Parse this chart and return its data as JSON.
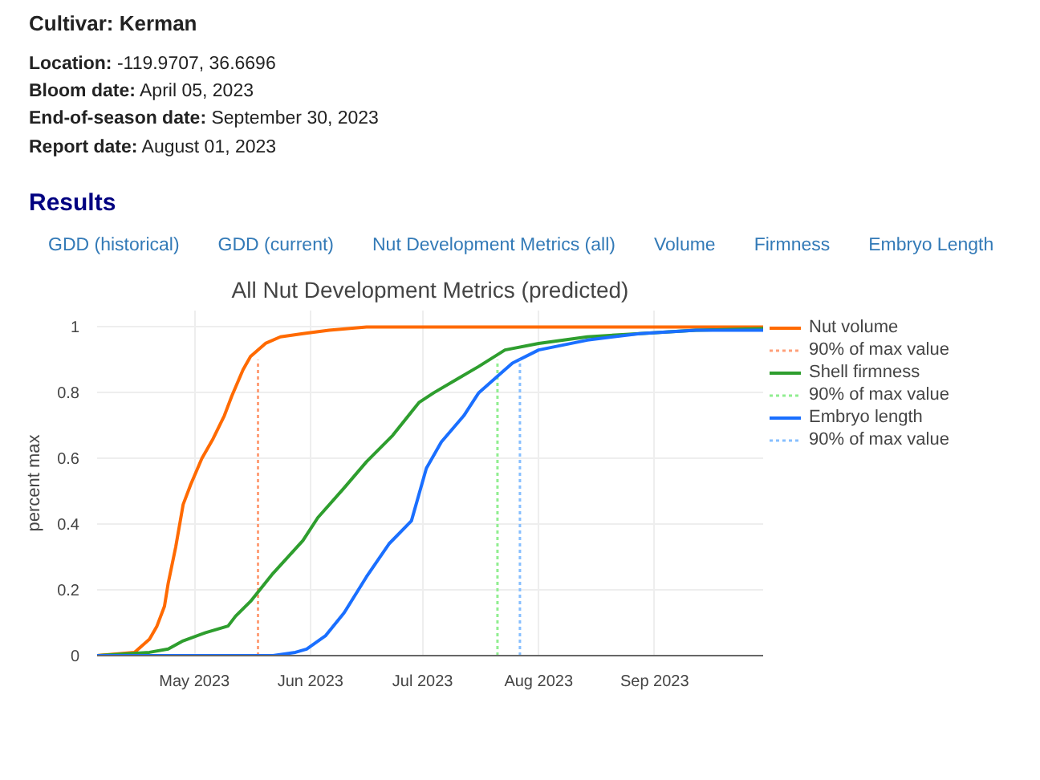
{
  "chart_data": {
    "type": "line",
    "title": "All Nut Development Metrics (predicted)",
    "ylabel": "percent max",
    "annotations": [
      "Cultivar: Kerman",
      "Location: -119.9707, 36.6696",
      "Bloom date: April 05, 2023",
      "End-of-season date: September 30, 2023",
      "Report date: August 01, 2023",
      "Results",
      "GDD (historical)",
      "GDD (current)",
      "Nut Development Metrics (all)",
      "Volume",
      "Firmness",
      "Embryo Length"
    ],
    "xlim": [
      "2023-04-05",
      "2023-09-30"
    ],
    "xticks": [
      {
        "value": "2023-05-01",
        "label": "May 2023"
      },
      {
        "value": "2023-06-01",
        "label": "Jun 2023"
      },
      {
        "value": "2023-07-01",
        "label": "Jul 2023"
      },
      {
        "value": "2023-08-01",
        "label": "Aug 2023"
      },
      {
        "value": "2023-09-01",
        "label": "Sep 2023"
      }
    ],
    "ylim": [
      0,
      1.05
    ],
    "yticks": [
      0,
      0.2,
      0.4,
      0.6,
      0.8,
      1
    ],
    "grid": true,
    "legend": "top right",
    "line_style": "solid",
    "series": [
      {
        "name": "Nut volume",
        "color": "#ff6a00",
        "x": [
          "2023-04-05",
          "2023-04-15",
          "2023-04-19",
          "2023-04-21",
          "2023-04-23",
          "2023-04-24",
          "2023-04-26",
          "2023-04-28",
          "2023-04-30",
          "2023-05-03",
          "2023-05-06",
          "2023-05-09",
          "2023-05-11",
          "2023-05-14",
          "2023-05-16",
          "2023-05-20",
          "2023-05-24",
          "2023-05-30",
          "2023-06-06",
          "2023-06-16",
          "2023-07-15",
          "2023-09-30"
        ],
        "values": [
          0,
          0.01,
          0.05,
          0.09,
          0.15,
          0.22,
          0.33,
          0.46,
          0.52,
          0.6,
          0.66,
          0.73,
          0.79,
          0.87,
          0.91,
          0.95,
          0.97,
          0.98,
          0.99,
          1,
          1,
          1
        ]
      },
      {
        "name": "90% of max value",
        "color": "#ffa07a",
        "line_style": "dotted",
        "x": [
          "2023-05-18",
          "2023-05-18"
        ],
        "values": [
          0,
          0.9
        ]
      },
      {
        "name": "Shell firmness",
        "color": "#2e9e2e",
        "x": [
          "2023-04-05",
          "2023-04-19",
          "2023-04-24",
          "2023-04-28",
          "2023-05-04",
          "2023-05-10",
          "2023-05-12",
          "2023-05-16",
          "2023-05-22",
          "2023-05-30",
          "2023-06-03",
          "2023-06-10",
          "2023-06-16",
          "2023-06-23",
          "2023-06-30",
          "2023-07-04",
          "2023-07-10",
          "2023-07-16",
          "2023-07-23",
          "2023-08-01",
          "2023-08-14",
          "2023-08-28",
          "2023-09-12",
          "2023-09-30"
        ],
        "values": [
          0,
          0.01,
          0.02,
          0.045,
          0.07,
          0.09,
          0.12,
          0.165,
          0.25,
          0.35,
          0.42,
          0.51,
          0.59,
          0.67,
          0.77,
          0.8,
          0.84,
          0.88,
          0.93,
          0.95,
          0.97,
          0.98,
          0.99,
          0.995
        ]
      },
      {
        "name": "90% of max value",
        "color": "#90ee90",
        "line_style": "dotted",
        "x": [
          "2023-07-21",
          "2023-07-21"
        ],
        "values": [
          0,
          0.9
        ]
      },
      {
        "name": "Embryo length",
        "color": "#1a6fff",
        "x": [
          "2023-04-05",
          "2023-05-22",
          "2023-05-28",
          "2023-05-31",
          "2023-06-05",
          "2023-06-10",
          "2023-06-16",
          "2023-06-22",
          "2023-06-28",
          "2023-07-02",
          "2023-07-06",
          "2023-07-12",
          "2023-07-16",
          "2023-07-22",
          "2023-07-25",
          "2023-08-01",
          "2023-08-14",
          "2023-08-28",
          "2023-09-12",
          "2023-09-30"
        ],
        "values": [
          0,
          0,
          0.01,
          0.02,
          0.06,
          0.13,
          0.24,
          0.34,
          0.41,
          0.57,
          0.65,
          0.73,
          0.8,
          0.86,
          0.89,
          0.93,
          0.96,
          0.98,
          0.99,
          0.99
        ]
      },
      {
        "name": "90% of max value",
        "color": "#87bfff",
        "line_style": "dotted",
        "x": [
          "2023-07-27",
          "2023-07-27"
        ],
        "values": [
          0,
          0.9
        ]
      }
    ]
  }
}
